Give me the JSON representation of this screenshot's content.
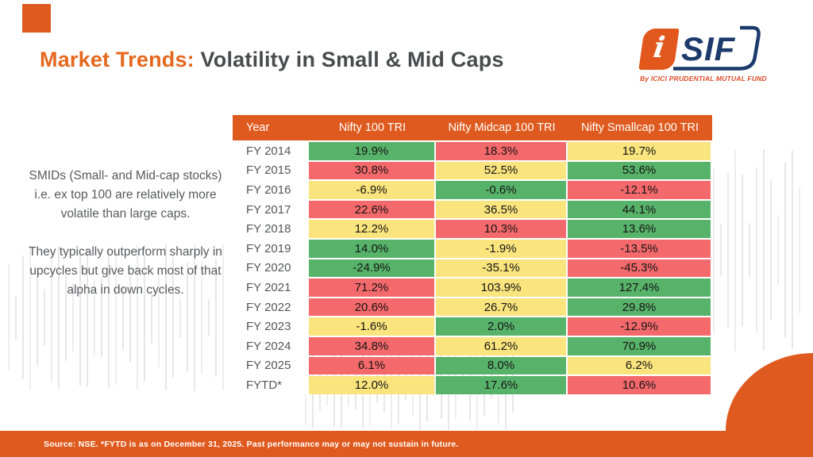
{
  "header": {
    "title_highlight": "Market Trends:",
    "title_rest": " Volatility in Small & Mid Caps",
    "logo": {
      "i_glyph": "i",
      "sif_text": "SIF",
      "tagline": "By ICICI PRUDENTIAL MUTUAL FUND"
    }
  },
  "note": {
    "para1": "SMIDs (Small- and Mid-cap stocks) i.e. ex top 100 are relatively more volatile than large caps.",
    "para2": "They typically outperform sharply in upcycles but give back most of that alpha in down cycles."
  },
  "chart_data": {
    "type": "table",
    "title": "Market Trends: Volatility in Small & Mid Caps",
    "units": "percent annual return",
    "columns": [
      "Year",
      "Nifty 100 TRI",
      "Nifty Midcap 100 TRI",
      "Nifty Smallcap 100 TRI"
    ],
    "rows": [
      {
        "year": "FY 2014",
        "values": [
          19.9,
          18.3,
          19.7
        ],
        "cell_colors": [
          "green",
          "red",
          "yellow"
        ]
      },
      {
        "year": "FY 2015",
        "values": [
          30.8,
          52.5,
          53.6
        ],
        "cell_colors": [
          "red",
          "yellow",
          "green"
        ]
      },
      {
        "year": "FY 2016",
        "values": [
          -6.9,
          -0.6,
          -12.1
        ],
        "cell_colors": [
          "yellow",
          "green",
          "red"
        ]
      },
      {
        "year": "FY 2017",
        "values": [
          22.6,
          36.5,
          44.1
        ],
        "cell_colors": [
          "red",
          "yellow",
          "green"
        ]
      },
      {
        "year": "FY 2018",
        "values": [
          12.2,
          10.3,
          13.6
        ],
        "cell_colors": [
          "yellow",
          "red",
          "green"
        ]
      },
      {
        "year": "FY 2019",
        "values": [
          14.0,
          -1.9,
          -13.5
        ],
        "cell_colors": [
          "green",
          "yellow",
          "red"
        ]
      },
      {
        "year": "FY 2020",
        "values": [
          -24.9,
          -35.1,
          -45.3
        ],
        "cell_colors": [
          "green",
          "yellow",
          "red"
        ]
      },
      {
        "year": "FY 2021",
        "values": [
          71.2,
          103.9,
          127.4
        ],
        "cell_colors": [
          "red",
          "yellow",
          "green"
        ]
      },
      {
        "year": "FY 2022",
        "values": [
          20.6,
          26.7,
          29.8
        ],
        "cell_colors": [
          "red",
          "yellow",
          "green"
        ]
      },
      {
        "year": "FY 2023",
        "values": [
          -1.6,
          2.0,
          -12.9
        ],
        "cell_colors": [
          "yellow",
          "green",
          "red"
        ]
      },
      {
        "year": "FY 2024",
        "values": [
          34.8,
          61.2,
          70.9
        ],
        "cell_colors": [
          "red",
          "yellow",
          "green"
        ]
      },
      {
        "year": "FY 2025",
        "values": [
          6.1,
          8.0,
          6.2
        ],
        "cell_colors": [
          "red",
          "green",
          "yellow"
        ]
      },
      {
        "year": "FYTD*",
        "values": [
          12.0,
          17.6,
          10.6
        ],
        "cell_colors": [
          "yellow",
          "green",
          "red"
        ]
      }
    ]
  },
  "colors": {
    "green": "#58B36A",
    "yellow": "#FAE47D",
    "red": "#F4696B",
    "orange_primary": "#DF5A1E",
    "title_orange": "#E6671E",
    "navy": "#1C3A6B"
  },
  "footer": {
    "text": "Source: NSE. *FYTD is as on December 31, 2025. Past performance may or may not sustain in future."
  }
}
